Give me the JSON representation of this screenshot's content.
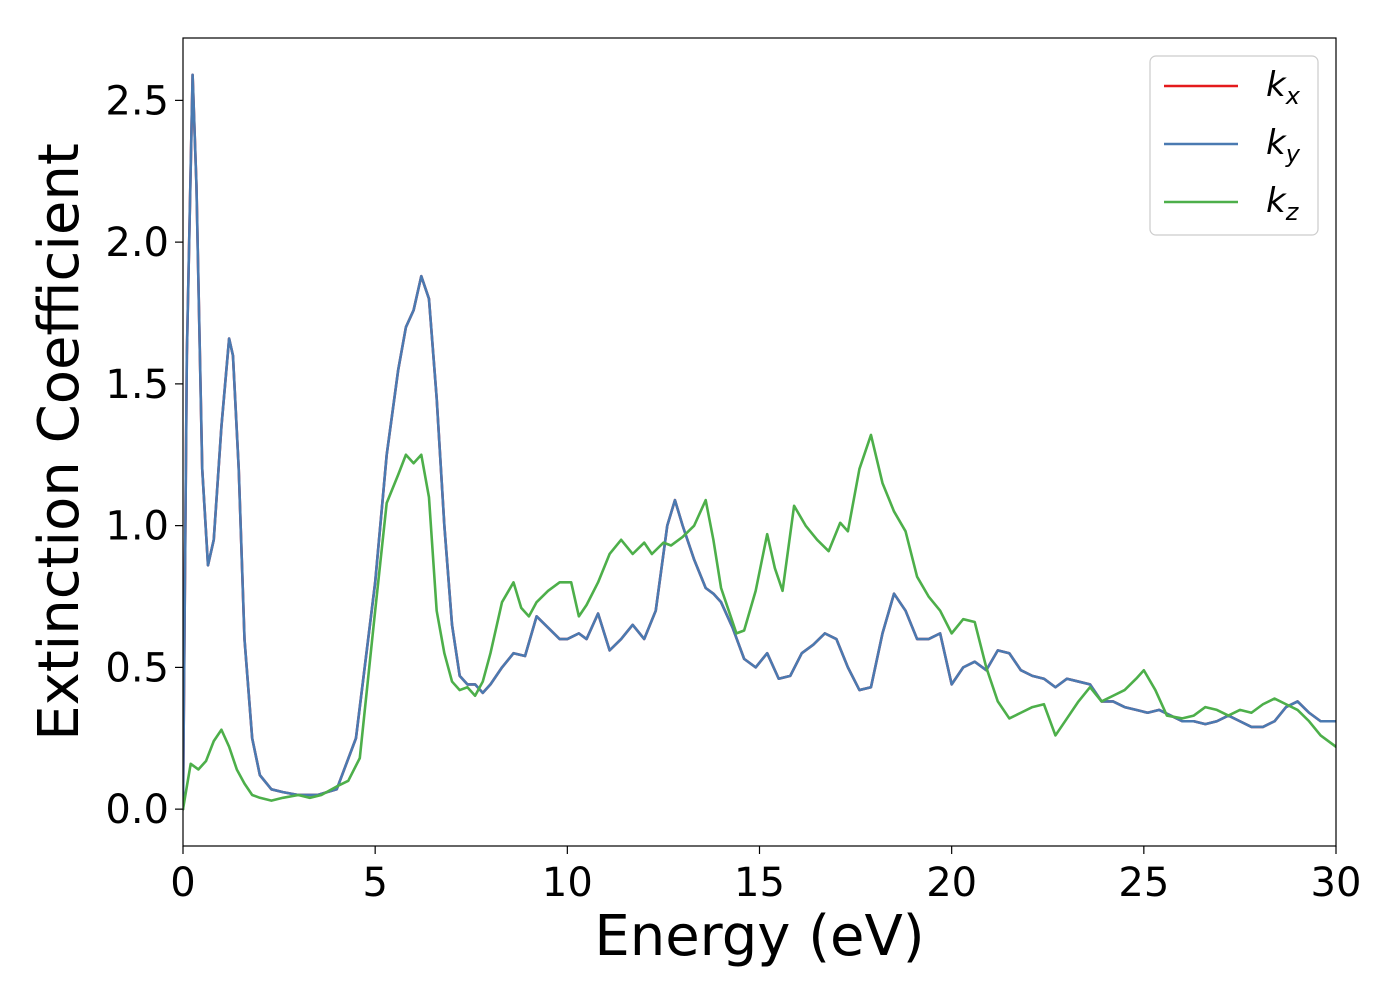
{
  "chart_data": {
    "type": "line",
    "title": "",
    "xlabel": "Energy (eV)",
    "ylabel": "Extinction Coefficient",
    "xlim": [
      0,
      30
    ],
    "ylim": [
      -0.13,
      2.72
    ],
    "xticks": [
      0,
      5,
      10,
      15,
      20,
      25,
      30
    ],
    "xtick_labels": [
      "0",
      "5",
      "10",
      "15",
      "20",
      "25",
      "30"
    ],
    "yticks": [
      0.0,
      0.5,
      1.0,
      1.5,
      2.0,
      2.5
    ],
    "ytick_labels": [
      "0.0",
      "0.5",
      "1.0",
      "1.5",
      "2.0",
      "2.5"
    ],
    "grid": false,
    "legend_position": "top-right",
    "series": [
      {
        "name": "k_x",
        "label_main": "k",
        "label_sub": "x",
        "color": "#e41a1c",
        "x": [
          0,
          0.1,
          0.25,
          0.35,
          0.5,
          0.65,
          0.8,
          1.0,
          1.2,
          1.3,
          1.45,
          1.6,
          1.8,
          2.0,
          2.3,
          2.6,
          3.0,
          3.5,
          4.0,
          4.5,
          5.0,
          5.3,
          5.6,
          5.8,
          6.0,
          6.2,
          6.4,
          6.6,
          6.8,
          7.0,
          7.2,
          7.4,
          7.6,
          7.8,
          8.0,
          8.3,
          8.6,
          8.9,
          9.2,
          9.5,
          9.8,
          10.0,
          10.3,
          10.5,
          10.8,
          11.1,
          11.4,
          11.7,
          12.0,
          12.3,
          12.6,
          12.8,
          13.0,
          13.3,
          13.6,
          13.8,
          14.0,
          14.3,
          14.6,
          14.9,
          15.2,
          15.5,
          15.8,
          16.1,
          16.4,
          16.7,
          17.0,
          17.3,
          17.6,
          17.9,
          18.2,
          18.5,
          18.8,
          19.1,
          19.4,
          19.7,
          20.0,
          20.3,
          20.6,
          20.9,
          21.2,
          21.5,
          21.8,
          22.1,
          22.4,
          22.7,
          23.0,
          23.3,
          23.6,
          23.9,
          24.2,
          24.5,
          24.8,
          25.1,
          25.4,
          25.7,
          26.0,
          26.3,
          26.6,
          26.9,
          27.2,
          27.5,
          27.8,
          28.1,
          28.4,
          28.7,
          29.0,
          29.3,
          29.6,
          30.0
        ],
        "y": [
          0.0,
          1.6,
          2.59,
          2.2,
          1.2,
          0.86,
          0.95,
          1.35,
          1.66,
          1.6,
          1.2,
          0.6,
          0.25,
          0.12,
          0.07,
          0.06,
          0.05,
          0.05,
          0.07,
          0.25,
          0.8,
          1.25,
          1.55,
          1.7,
          1.76,
          1.88,
          1.8,
          1.45,
          1.0,
          0.65,
          0.47,
          0.44,
          0.44,
          0.41,
          0.44,
          0.5,
          0.55,
          0.54,
          0.68,
          0.64,
          0.6,
          0.6,
          0.62,
          0.6,
          0.69,
          0.56,
          0.6,
          0.65,
          0.6,
          0.7,
          1.0,
          1.09,
          1.0,
          0.88,
          0.78,
          0.76,
          0.73,
          0.64,
          0.53,
          0.5,
          0.55,
          0.46,
          0.47,
          0.55,
          0.58,
          0.62,
          0.6,
          0.5,
          0.42,
          0.43,
          0.62,
          0.76,
          0.7,
          0.6,
          0.6,
          0.62,
          0.44,
          0.5,
          0.52,
          0.49,
          0.56,
          0.55,
          0.49,
          0.47,
          0.46,
          0.43,
          0.46,
          0.45,
          0.44,
          0.38,
          0.38,
          0.36,
          0.35,
          0.34,
          0.35,
          0.33,
          0.31,
          0.31,
          0.3,
          0.31,
          0.33,
          0.31,
          0.29,
          0.29,
          0.31,
          0.36,
          0.38,
          0.34,
          0.31,
          0.31
        ]
      },
      {
        "name": "k_y",
        "label_main": "k",
        "label_sub": "y",
        "color": "#4a7ab1",
        "x": [
          0,
          0.1,
          0.25,
          0.35,
          0.5,
          0.65,
          0.8,
          1.0,
          1.2,
          1.3,
          1.45,
          1.6,
          1.8,
          2.0,
          2.3,
          2.6,
          3.0,
          3.5,
          4.0,
          4.5,
          5.0,
          5.3,
          5.6,
          5.8,
          6.0,
          6.2,
          6.4,
          6.6,
          6.8,
          7.0,
          7.2,
          7.4,
          7.6,
          7.8,
          8.0,
          8.3,
          8.6,
          8.9,
          9.2,
          9.5,
          9.8,
          10.0,
          10.3,
          10.5,
          10.8,
          11.1,
          11.4,
          11.7,
          12.0,
          12.3,
          12.6,
          12.8,
          13.0,
          13.3,
          13.6,
          13.8,
          14.0,
          14.3,
          14.6,
          14.9,
          15.2,
          15.5,
          15.8,
          16.1,
          16.4,
          16.7,
          17.0,
          17.3,
          17.6,
          17.9,
          18.2,
          18.5,
          18.8,
          19.1,
          19.4,
          19.7,
          20.0,
          20.3,
          20.6,
          20.9,
          21.2,
          21.5,
          21.8,
          22.1,
          22.4,
          22.7,
          23.0,
          23.3,
          23.6,
          23.9,
          24.2,
          24.5,
          24.8,
          25.1,
          25.4,
          25.7,
          26.0,
          26.3,
          26.6,
          26.9,
          27.2,
          27.5,
          27.8,
          28.1,
          28.4,
          28.7,
          29.0,
          29.3,
          29.6,
          30.0
        ],
        "y": [
          0.0,
          1.6,
          2.59,
          2.2,
          1.2,
          0.86,
          0.95,
          1.35,
          1.66,
          1.6,
          1.2,
          0.6,
          0.25,
          0.12,
          0.07,
          0.06,
          0.05,
          0.05,
          0.07,
          0.25,
          0.8,
          1.25,
          1.55,
          1.7,
          1.76,
          1.88,
          1.8,
          1.45,
          1.0,
          0.65,
          0.47,
          0.44,
          0.44,
          0.41,
          0.44,
          0.5,
          0.55,
          0.54,
          0.68,
          0.64,
          0.6,
          0.6,
          0.62,
          0.6,
          0.69,
          0.56,
          0.6,
          0.65,
          0.6,
          0.7,
          1.0,
          1.09,
          1.0,
          0.88,
          0.78,
          0.76,
          0.73,
          0.64,
          0.53,
          0.5,
          0.55,
          0.46,
          0.47,
          0.55,
          0.58,
          0.62,
          0.6,
          0.5,
          0.42,
          0.43,
          0.62,
          0.76,
          0.7,
          0.6,
          0.6,
          0.62,
          0.44,
          0.5,
          0.52,
          0.49,
          0.56,
          0.55,
          0.49,
          0.47,
          0.46,
          0.43,
          0.46,
          0.45,
          0.44,
          0.38,
          0.38,
          0.36,
          0.35,
          0.34,
          0.35,
          0.33,
          0.31,
          0.31,
          0.3,
          0.31,
          0.33,
          0.31,
          0.29,
          0.29,
          0.31,
          0.36,
          0.38,
          0.34,
          0.31,
          0.31
        ]
      },
      {
        "name": "k_z",
        "label_main": "k",
        "label_sub": "z",
        "color": "#4daf4a",
        "x": [
          0,
          0.2,
          0.4,
          0.6,
          0.8,
          1.0,
          1.2,
          1.4,
          1.6,
          1.8,
          2.0,
          2.3,
          2.6,
          3.0,
          3.3,
          3.6,
          4.0,
          4.3,
          4.6,
          5.0,
          5.3,
          5.6,
          5.8,
          6.0,
          6.2,
          6.4,
          6.6,
          6.8,
          7.0,
          7.2,
          7.4,
          7.6,
          7.8,
          8.0,
          8.3,
          8.6,
          8.8,
          9.0,
          9.2,
          9.5,
          9.8,
          10.1,
          10.3,
          10.5,
          10.8,
          11.1,
          11.4,
          11.7,
          12.0,
          12.2,
          12.5,
          12.7,
          13.0,
          13.3,
          13.6,
          13.8,
          14.0,
          14.2,
          14.4,
          14.6,
          14.9,
          15.2,
          15.4,
          15.6,
          15.9,
          16.2,
          16.5,
          16.8,
          17.1,
          17.3,
          17.6,
          17.9,
          18.2,
          18.5,
          18.8,
          19.1,
          19.4,
          19.7,
          20.0,
          20.3,
          20.6,
          20.9,
          21.2,
          21.5,
          21.8,
          22.1,
          22.4,
          22.7,
          23.0,
          23.3,
          23.6,
          23.9,
          24.2,
          24.5,
          24.8,
          25.0,
          25.3,
          25.6,
          26.0,
          26.3,
          26.6,
          26.9,
          27.2,
          27.5,
          27.8,
          28.1,
          28.4,
          28.7,
          29.0,
          29.3,
          29.6,
          30.0
        ],
        "y": [
          0.0,
          0.16,
          0.14,
          0.17,
          0.24,
          0.28,
          0.22,
          0.14,
          0.09,
          0.05,
          0.04,
          0.03,
          0.04,
          0.05,
          0.04,
          0.05,
          0.08,
          0.1,
          0.18,
          0.7,
          1.08,
          1.18,
          1.25,
          1.22,
          1.25,
          1.1,
          0.7,
          0.55,
          0.45,
          0.42,
          0.43,
          0.4,
          0.45,
          0.55,
          0.73,
          0.8,
          0.71,
          0.68,
          0.73,
          0.77,
          0.8,
          0.8,
          0.68,
          0.72,
          0.8,
          0.9,
          0.95,
          0.9,
          0.94,
          0.9,
          0.94,
          0.93,
          0.96,
          1.0,
          1.09,
          0.95,
          0.78,
          0.7,
          0.62,
          0.63,
          0.77,
          0.97,
          0.85,
          0.77,
          1.07,
          1.0,
          0.95,
          0.91,
          1.01,
          0.98,
          1.2,
          1.32,
          1.15,
          1.05,
          0.98,
          0.82,
          0.75,
          0.7,
          0.62,
          0.67,
          0.66,
          0.5,
          0.38,
          0.32,
          0.34,
          0.36,
          0.37,
          0.26,
          0.32,
          0.38,
          0.43,
          0.38,
          0.4,
          0.42,
          0.46,
          0.49,
          0.42,
          0.33,
          0.32,
          0.33,
          0.36,
          0.35,
          0.33,
          0.35,
          0.34,
          0.37,
          0.39,
          0.37,
          0.35,
          0.31,
          0.26,
          0.22
        ]
      }
    ]
  }
}
